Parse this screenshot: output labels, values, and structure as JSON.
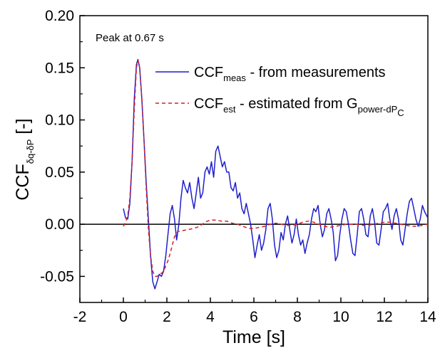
{
  "chart_data": {
    "type": "line",
    "xlabel": "Time [s]",
    "ylabel": {
      "main": "CCF",
      "sub": "δq-δP",
      "unit": " [-]"
    },
    "xlim": [
      -2,
      14
    ],
    "ylim": [
      -0.075,
      0.2
    ],
    "xticks": [
      -2,
      0,
      2,
      4,
      6,
      8,
      10,
      12,
      14
    ],
    "yticks": [
      -0.05,
      0.0,
      0.05,
      0.1,
      0.15,
      0.2
    ],
    "xtick_labels": [
      "-2",
      "0",
      "2",
      "4",
      "6",
      "8",
      "10",
      "12",
      "14"
    ],
    "ytick_labels": [
      "-0.05",
      "0.00",
      "0.05",
      "0.10",
      "0.15",
      "0.20"
    ],
    "annotation": "Peak at 0.67 s",
    "legend": [
      {
        "name": "CCF",
        "sub": "meas",
        "desc": " - from measurements",
        "color": "#1f1fcc",
        "dash": ""
      },
      {
        "name": "CCF",
        "sub": "est",
        "desc": " - estimated from G",
        "sub2": "power-dP",
        "sub3": "C",
        "color": "#d42020",
        "dash": "5,4"
      }
    ],
    "zero_line": true,
    "series": [
      {
        "key": "meas",
        "color": "#1f1fcc",
        "points": [
          [
            0.0,
            0.015
          ],
          [
            0.1,
            0.006
          ],
          [
            0.2,
            0.005
          ],
          [
            0.3,
            0.02
          ],
          [
            0.4,
            0.06
          ],
          [
            0.5,
            0.12
          ],
          [
            0.6,
            0.153
          ],
          [
            0.67,
            0.158
          ],
          [
            0.75,
            0.15
          ],
          [
            0.85,
            0.12
          ],
          [
            0.95,
            0.08
          ],
          [
            1.05,
            0.04
          ],
          [
            1.15,
            0.005
          ],
          [
            1.25,
            -0.03
          ],
          [
            1.35,
            -0.055
          ],
          [
            1.45,
            -0.062
          ],
          [
            1.55,
            -0.055
          ],
          [
            1.65,
            -0.048
          ],
          [
            1.75,
            -0.05
          ],
          [
            1.85,
            -0.045
          ],
          [
            1.95,
            -0.03
          ],
          [
            2.05,
            -0.01
          ],
          [
            2.15,
            0.01
          ],
          [
            2.25,
            0.018
          ],
          [
            2.35,
            0.005
          ],
          [
            2.45,
            -0.015
          ],
          [
            2.55,
            0.0
          ],
          [
            2.65,
            0.025
          ],
          [
            2.75,
            0.042
          ],
          [
            2.85,
            0.035
          ],
          [
            2.95,
            0.03
          ],
          [
            3.05,
            0.04
          ],
          [
            3.15,
            0.025
          ],
          [
            3.25,
            0.015
          ],
          [
            3.35,
            0.03
          ],
          [
            3.45,
            0.045
          ],
          [
            3.55,
            0.025
          ],
          [
            3.65,
            0.03
          ],
          [
            3.75,
            0.05
          ],
          [
            3.85,
            0.055
          ],
          [
            3.95,
            0.048
          ],
          [
            4.05,
            0.06
          ],
          [
            4.15,
            0.045
          ],
          [
            4.25,
            0.07
          ],
          [
            4.35,
            0.075
          ],
          [
            4.45,
            0.065
          ],
          [
            4.55,
            0.055
          ],
          [
            4.65,
            0.06
          ],
          [
            4.75,
            0.05
          ],
          [
            4.85,
            0.05
          ],
          [
            4.95,
            0.035
          ],
          [
            5.05,
            0.032
          ],
          [
            5.15,
            0.04
          ],
          [
            5.25,
            0.025
          ],
          [
            5.35,
            0.03
          ],
          [
            5.45,
            0.015
          ],
          [
            5.55,
            0.01
          ],
          [
            5.65,
            0.02
          ],
          [
            5.75,
            0.01
          ],
          [
            5.85,
            0.0
          ],
          [
            5.95,
            -0.015
          ],
          [
            6.05,
            -0.032
          ],
          [
            6.15,
            -0.02
          ],
          [
            6.25,
            -0.01
          ],
          [
            6.35,
            -0.025
          ],
          [
            6.45,
            -0.018
          ],
          [
            6.55,
            -0.005
          ],
          [
            6.65,
            0.015
          ],
          [
            6.75,
            0.02
          ],
          [
            6.85,
            0.005
          ],
          [
            6.95,
            -0.02
          ],
          [
            7.05,
            -0.032
          ],
          [
            7.15,
            -0.025
          ],
          [
            7.25,
            -0.008
          ],
          [
            7.35,
            -0.015
          ],
          [
            7.45,
            0.0
          ],
          [
            7.55,
            0.008
          ],
          [
            7.65,
            -0.005
          ],
          [
            7.75,
            -0.018
          ],
          [
            7.85,
            -0.01
          ],
          [
            7.95,
            0.005
          ],
          [
            8.05,
            -0.01
          ],
          [
            8.15,
            -0.02
          ],
          [
            8.25,
            -0.015
          ],
          [
            8.35,
            -0.028
          ],
          [
            8.45,
            -0.018
          ],
          [
            8.55,
            -0.01
          ],
          [
            8.65,
            0.005
          ],
          [
            8.75,
            0.015
          ],
          [
            8.85,
            0.012
          ],
          [
            8.95,
            0.018
          ],
          [
            9.05,
            0.0
          ],
          [
            9.15,
            -0.012
          ],
          [
            9.25,
            -0.005
          ],
          [
            9.35,
            0.01
          ],
          [
            9.45,
            0.015
          ],
          [
            9.55,
            0.005
          ],
          [
            9.65,
            -0.008
          ],
          [
            9.75,
            -0.035
          ],
          [
            9.85,
            -0.03
          ],
          [
            9.95,
            -0.01
          ],
          [
            10.05,
            0.005
          ],
          [
            10.15,
            0.015
          ],
          [
            10.25,
            0.012
          ],
          [
            10.35,
            0.0
          ],
          [
            10.45,
            -0.015
          ],
          [
            10.55,
            -0.028
          ],
          [
            10.65,
            -0.03
          ],
          [
            10.75,
            -0.01
          ],
          [
            10.85,
            0.012
          ],
          [
            10.95,
            0.015
          ],
          [
            11.05,
            0.005
          ],
          [
            11.15,
            -0.01
          ],
          [
            11.25,
            -0.012
          ],
          [
            11.35,
            0.008
          ],
          [
            11.45,
            0.015
          ],
          [
            11.55,
            0.002
          ],
          [
            11.65,
            -0.018
          ],
          [
            11.75,
            -0.02
          ],
          [
            11.85,
            -0.005
          ],
          [
            11.95,
            0.012
          ],
          [
            12.05,
            0.015
          ],
          [
            12.15,
            0.02
          ],
          [
            12.25,
            0.005
          ],
          [
            12.35,
            -0.005
          ],
          [
            12.45,
            0.008
          ],
          [
            12.55,
            0.015
          ],
          [
            12.65,
            0.005
          ],
          [
            12.75,
            -0.015
          ],
          [
            12.85,
            -0.02
          ],
          [
            12.95,
            -0.005
          ],
          [
            13.05,
            0.01
          ],
          [
            13.15,
            0.022
          ],
          [
            13.25,
            0.025
          ],
          [
            13.35,
            0.015
          ],
          [
            13.45,
            0.005
          ],
          [
            13.55,
            -0.002
          ],
          [
            13.65,
            0.005
          ],
          [
            13.75,
            0.018
          ],
          [
            13.85,
            0.012
          ],
          [
            13.95,
            0.008
          ],
          [
            14.0,
            0.006
          ]
        ]
      },
      {
        "key": "est",
        "color": "#d42020",
        "dash": "5,4",
        "points": [
          [
            0.0,
            -0.002
          ],
          [
            0.1,
            0.002
          ],
          [
            0.2,
            0.008
          ],
          [
            0.3,
            0.025
          ],
          [
            0.4,
            0.06
          ],
          [
            0.5,
            0.11
          ],
          [
            0.6,
            0.15
          ],
          [
            0.67,
            0.157
          ],
          [
            0.75,
            0.15
          ],
          [
            0.85,
            0.12
          ],
          [
            0.95,
            0.08
          ],
          [
            1.05,
            0.035
          ],
          [
            1.15,
            -0.005
          ],
          [
            1.25,
            -0.03
          ],
          [
            1.35,
            -0.045
          ],
          [
            1.45,
            -0.05
          ],
          [
            1.55,
            -0.05
          ],
          [
            1.65,
            -0.048
          ],
          [
            1.75,
            -0.047
          ],
          [
            1.85,
            -0.045
          ],
          [
            1.95,
            -0.04
          ],
          [
            2.05,
            -0.035
          ],
          [
            2.15,
            -0.028
          ],
          [
            2.25,
            -0.02
          ],
          [
            2.35,
            -0.012
          ],
          [
            2.5,
            -0.007
          ],
          [
            2.75,
            -0.006
          ],
          [
            3.0,
            -0.005
          ],
          [
            3.25,
            -0.004
          ],
          [
            3.5,
            -0.002
          ],
          [
            3.75,
            0.002
          ],
          [
            4.0,
            0.004
          ],
          [
            4.25,
            0.004
          ],
          [
            4.5,
            0.003
          ],
          [
            4.75,
            0.003
          ],
          [
            5.0,
            0.001
          ],
          [
            5.25,
            0.0
          ],
          [
            5.5,
            -0.002
          ],
          [
            5.75,
            -0.004
          ],
          [
            6.0,
            -0.004
          ],
          [
            6.25,
            -0.003
          ],
          [
            6.5,
            -0.002
          ],
          [
            6.75,
            0.0
          ],
          [
            7.0,
            0.001
          ],
          [
            7.25,
            0.0
          ],
          [
            7.5,
            -0.001
          ],
          [
            7.75,
            -0.001
          ],
          [
            8.0,
            0.0
          ],
          [
            8.25,
            0.002
          ],
          [
            8.5,
            0.003
          ],
          [
            8.75,
            0.002
          ],
          [
            9.0,
            0.0
          ],
          [
            9.25,
            -0.002
          ],
          [
            9.5,
            -0.003
          ],
          [
            9.75,
            -0.002
          ],
          [
            10.0,
            -0.001
          ],
          [
            10.25,
            0.0
          ],
          [
            10.5,
            0.0
          ],
          [
            10.75,
            0.0
          ],
          [
            11.0,
            -0.001
          ],
          [
            11.25,
            -0.001
          ],
          [
            11.5,
            0.0
          ],
          [
            11.75,
            0.001
          ],
          [
            12.0,
            0.002
          ],
          [
            12.25,
            0.002
          ],
          [
            12.5,
            0.001
          ],
          [
            12.75,
            0.0
          ],
          [
            13.0,
            -0.001
          ],
          [
            13.25,
            -0.002
          ],
          [
            13.5,
            -0.002
          ],
          [
            13.75,
            -0.001
          ],
          [
            14.0,
            0.0
          ]
        ]
      }
    ]
  }
}
